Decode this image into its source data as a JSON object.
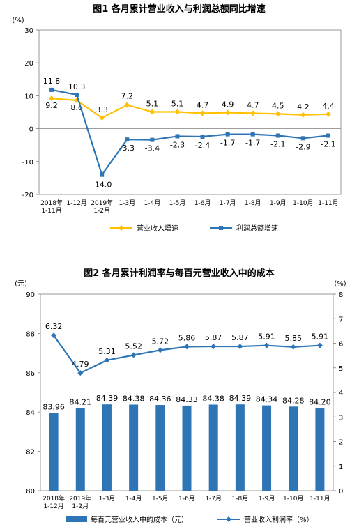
{
  "chart_data": [
    {
      "type": "line",
      "title": "图1  各月累计营业收入与利润总额同比增速",
      "y_unit": "(%)",
      "ylim": [
        -20,
        30
      ],
      "yticks": [
        "30",
        "20",
        "10",
        "0",
        "-10",
        "-20"
      ],
      "categories": [
        [
          "2018年",
          "1-11月"
        ],
        [
          "1-12月"
        ],
        [
          "2019年",
          "1-2月"
        ],
        [
          "1-3月"
        ],
        [
          "1-4月"
        ],
        [
          "1-5月"
        ],
        [
          "1-6月"
        ],
        [
          "1-7月"
        ],
        [
          "1-8月"
        ],
        [
          "1-9月"
        ],
        [
          "1-10月"
        ],
        [
          "1-11月"
        ]
      ],
      "series": [
        {
          "name": "营业收入增速",
          "color": "#FFC000",
          "marker": "diamond",
          "values": [
            9.2,
            8.6,
            3.3,
            7.2,
            5.1,
            5.1,
            4.7,
            4.9,
            4.7,
            4.5,
            4.2,
            4.4
          ],
          "labels": [
            "9.2",
            "8.6",
            "3.3",
            "7.2",
            "5.1",
            "5.1",
            "4.7",
            "4.9",
            "4.7",
            "4.5",
            "4.2",
            "4.4"
          ]
        },
        {
          "name": "利润总额增速",
          "color": "#2E75B6",
          "marker": "square",
          "values": [
            11.8,
            10.3,
            -14.0,
            -3.3,
            -3.4,
            -2.3,
            -2.4,
            -1.7,
            -1.7,
            -2.1,
            -2.9,
            -2.1
          ],
          "labels": [
            "11.8",
            "10.3",
            "-14.0",
            "-3.3",
            "-3.4",
            "-2.3",
            "-2.4",
            "-1.7",
            "-1.7",
            "-2.1",
            "-2.9",
            "-2.1"
          ]
        }
      ],
      "legend_position": "bottom",
      "grid": false
    },
    {
      "type": "bar",
      "title": "图2  各月累计利润率与每百元营业收入中的成本",
      "y_unit_left": "(元)",
      "y_unit_right": "(%)",
      "ylim_left": [
        80,
        90
      ],
      "ylim_right": [
        0,
        8
      ],
      "yticks_left": [
        "90",
        "88",
        "86",
        "84",
        "82",
        "80"
      ],
      "yticks_right": [
        "8",
        "7",
        "6",
        "5",
        "4",
        "3",
        "2",
        "1",
        "0"
      ],
      "categories": [
        [
          "2018年",
          "1-12月"
        ],
        [
          "2019年",
          "1-2月"
        ],
        [
          "1-3月"
        ],
        [
          "1-4月"
        ],
        [
          "1-5月"
        ],
        [
          "1-6月"
        ],
        [
          "1-7月"
        ],
        [
          "1-8月"
        ],
        [
          "1-9月"
        ],
        [
          "1-10月"
        ],
        [
          "1-11月"
        ]
      ],
      "series": [
        {
          "name": "每百元营业收入中的成本（元）",
          "kind": "bar",
          "axis": "left",
          "color": "#2E75B6",
          "values": [
            83.96,
            84.21,
            84.39,
            84.38,
            84.36,
            84.33,
            84.38,
            84.39,
            84.34,
            84.28,
            84.2
          ],
          "labels": [
            "83.96",
            "84.21",
            "84.39",
            "84.38",
            "84.36",
            "84.33",
            "84.38",
            "84.39",
            "84.34",
            "84.28",
            "84.20"
          ]
        },
        {
          "name": "营业收入利润率（%）",
          "kind": "line",
          "axis": "right",
          "color": "#2E75B6",
          "marker": "diamond",
          "values": [
            6.32,
            4.79,
            5.31,
            5.52,
            5.72,
            5.86,
            5.87,
            5.87,
            5.91,
            5.85,
            5.91
          ],
          "labels": [
            "6.32",
            "4.79",
            "5.31",
            "5.52",
            "5.72",
            "5.86",
            "5.87",
            "5.87",
            "5.91",
            "5.85",
            "5.91"
          ]
        }
      ],
      "legend_position": "bottom",
      "grid": false
    }
  ]
}
